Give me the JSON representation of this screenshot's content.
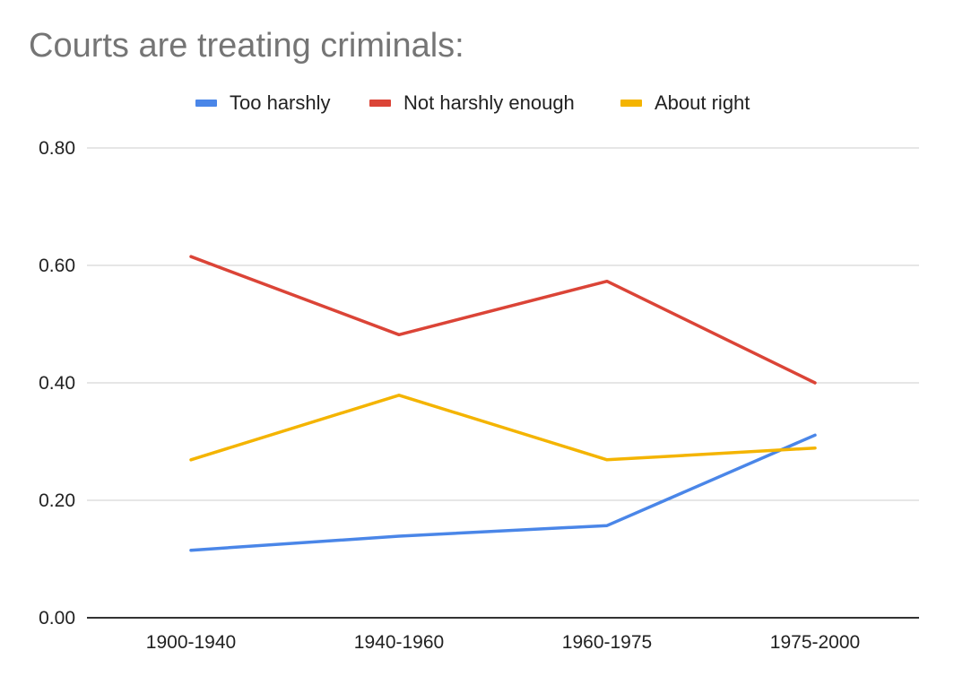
{
  "chart_data": {
    "type": "line",
    "title": "Courts are treating criminals:",
    "xlabel": "",
    "ylabel": "",
    "categories": [
      "1900-1940",
      "1940-1960",
      "1960-1975",
      "1975-2000"
    ],
    "ylim": [
      0,
      0.8
    ],
    "yticks": [
      0,
      0.2,
      0.4,
      0.6,
      0.8
    ],
    "ytick_labels": [
      "0.00",
      "0.20",
      "0.40",
      "0.60",
      "0.80"
    ],
    "grid": true,
    "legend_position": "top",
    "series": [
      {
        "name": "Too harshly",
        "color": "#4a86e8",
        "values": [
          0.115,
          0.139,
          0.157,
          0.311
        ]
      },
      {
        "name": "Not harshly enough",
        "color": "#db4437",
        "values": [
          0.615,
          0.482,
          0.573,
          0.4
        ]
      },
      {
        "name": "About right",
        "color": "#f4b400",
        "values": [
          0.269,
          0.379,
          0.269,
          0.289
        ]
      }
    ]
  }
}
